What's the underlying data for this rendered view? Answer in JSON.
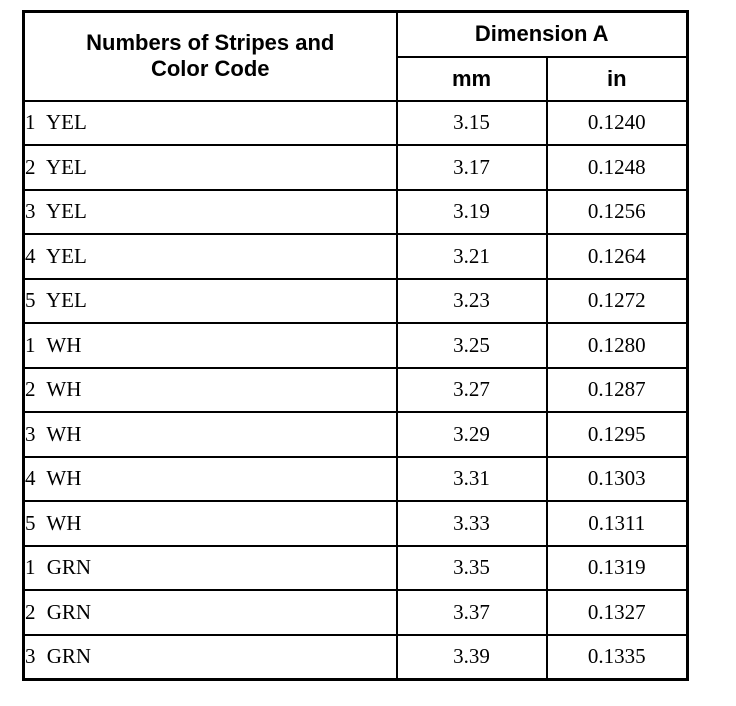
{
  "colors": {
    "border": "#000000",
    "text": "#000000",
    "background": "#ffffff"
  },
  "table": {
    "header": {
      "col1_line1": "Numbers of Stripes and",
      "col1_line2": "Color Code",
      "dimension_title": "Dimension A",
      "unit_mm": "mm",
      "unit_in": "in"
    },
    "rows": [
      {
        "label": "1 YEL",
        "mm": "3.15",
        "in": "0.1240"
      },
      {
        "label": "2 YEL",
        "mm": "3.17",
        "in": "0.1248"
      },
      {
        "label": "3 YEL",
        "mm": "3.19",
        "in": "0.1256"
      },
      {
        "label": "4 YEL",
        "mm": "3.21",
        "in": "0.1264"
      },
      {
        "label": "5 YEL",
        "mm": "3.23",
        "in": "0.1272"
      },
      {
        "label": "1 WH",
        "mm": "3.25",
        "in": "0.1280"
      },
      {
        "label": "2 WH",
        "mm": "3.27",
        "in": "0.1287"
      },
      {
        "label": "3 WH",
        "mm": "3.29",
        "in": "0.1295"
      },
      {
        "label": "4 WH",
        "mm": "3.31",
        "in": "0.1303"
      },
      {
        "label": "5 WH",
        "mm": "3.33",
        "in": "0.1311"
      },
      {
        "label": "1 GRN",
        "mm": "3.35",
        "in": "0.1319"
      },
      {
        "label": "2 GRN",
        "mm": "3.37",
        "in": "0.1327"
      },
      {
        "label": "3 GRN",
        "mm": "3.39",
        "in": "0.1335"
      }
    ]
  }
}
